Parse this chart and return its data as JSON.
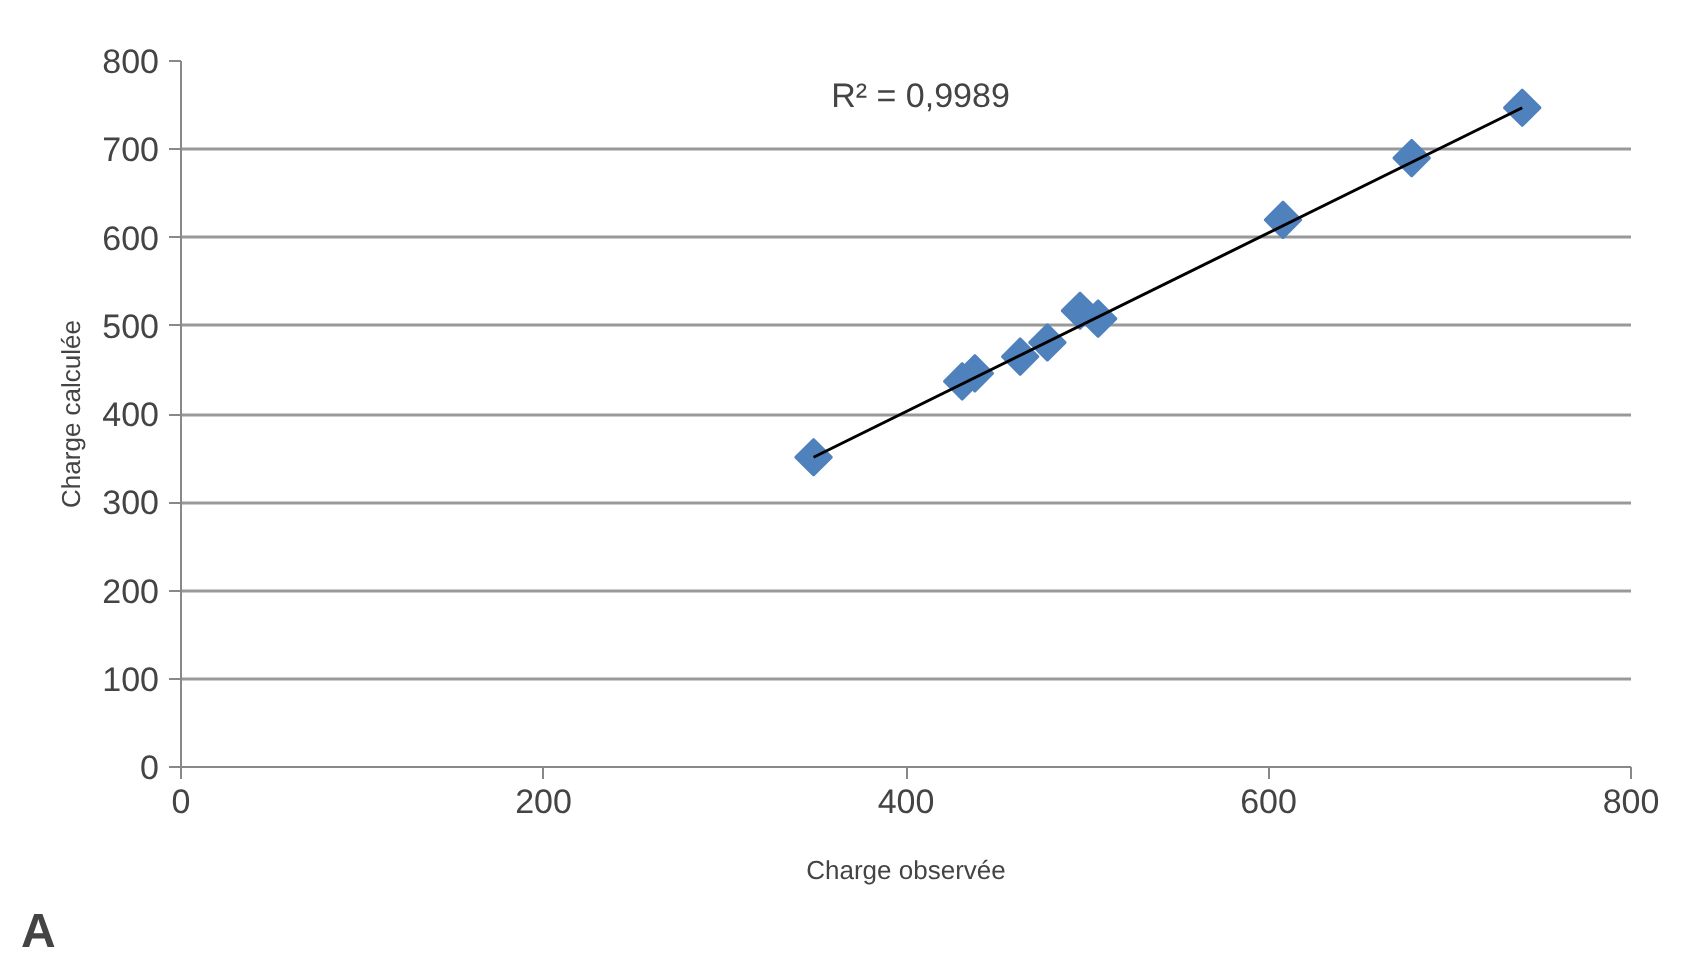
{
  "chart_data": {
    "type": "scatter",
    "xlabel": "Charge observée",
    "ylabel": "Charge calculée",
    "xlim": [
      0,
      800
    ],
    "xticks": [
      0,
      200,
      400,
      600,
      800
    ],
    "ylim": [
      0,
      800
    ],
    "yticks": [
      0,
      100,
      200,
      300,
      400,
      500,
      600,
      700,
      800
    ],
    "grid": "y",
    "marker": "diamond",
    "series": [
      {
        "color": "#4f81bd",
        "x": [
          349,
          431,
          438,
          463,
          478,
          496,
          506,
          608,
          679,
          740
        ],
        "values": [
          351,
          437,
          446,
          465,
          481,
          517,
          508,
          620,
          690,
          747
        ]
      },
      {
        "type": "line",
        "marker": "none",
        "color": "#000000",
        "x": [
          349,
          740
        ],
        "values": [
          351,
          747
        ]
      }
    ],
    "annotations": [
      "R² = 0,9989",
      "A"
    ]
  }
}
